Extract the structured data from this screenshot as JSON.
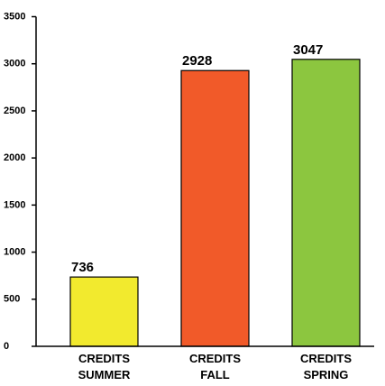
{
  "chart_data": {
    "type": "bar",
    "categories": [
      "CREDITS SUMMER",
      "CREDITS FALL",
      "CREDITS SPRING"
    ],
    "values": [
      736,
      2928,
      3047
    ],
    "colors": [
      "#f2ea2e",
      "#f15a29",
      "#8cc63f"
    ],
    "ylim": [
      0,
      3500
    ],
    "yticks": [
      0,
      500,
      1000,
      1500,
      2000,
      2500,
      3000,
      3500
    ]
  }
}
